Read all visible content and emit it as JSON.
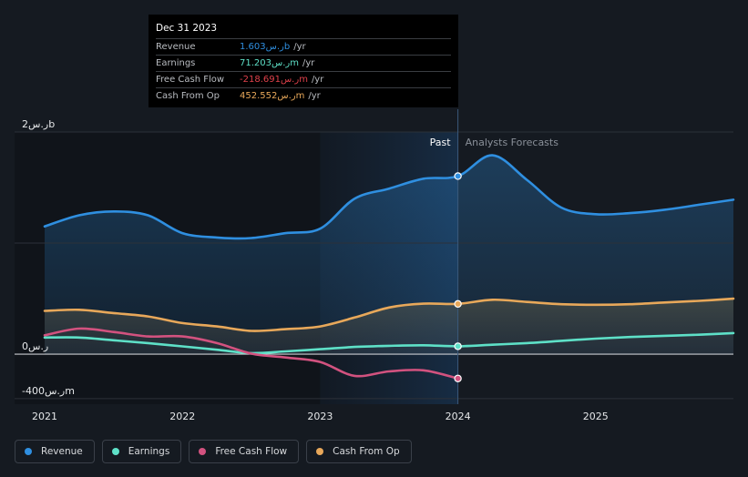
{
  "chart_data": {
    "type": "area",
    "title": "",
    "xlabel": "",
    "ylabel": "",
    "x_ticks": [
      {
        "label": "2021",
        "value": 2021.0
      },
      {
        "label": "2022",
        "value": 2022.0
      },
      {
        "label": "2023",
        "value": 2023.0
      },
      {
        "label": "2024",
        "value": 2024.0
      },
      {
        "label": "2025",
        "value": 2025.0
      }
    ],
    "xlim": [
      2020.98,
      2026.0
    ],
    "ylim": [
      -450,
      2000
    ],
    "y_ticks": [
      {
        "label": "2ر.سb",
        "value": 2000
      },
      {
        "label": "0ر.س",
        "value": 0
      },
      {
        "label": "-400ر.سm",
        "value": -400
      }
    ],
    "past_label": "Past",
    "forecast_label": "Analysts Forecasts",
    "past_end": 2024.0,
    "highlight_start": 2023.0,
    "series": [
      {
        "name": "Revenue",
        "color": "#2f8fe0",
        "fill": true,
        "points": [
          [
            2021.0,
            1150
          ],
          [
            2021.25,
            1250
          ],
          [
            2021.5,
            1285
          ],
          [
            2021.75,
            1250
          ],
          [
            2022.0,
            1090
          ],
          [
            2022.25,
            1050
          ],
          [
            2022.5,
            1045
          ],
          [
            2022.75,
            1090
          ],
          [
            2023.0,
            1130
          ],
          [
            2023.25,
            1400
          ],
          [
            2023.5,
            1490
          ],
          [
            2023.75,
            1580
          ],
          [
            2024.0,
            1603
          ],
          [
            2024.25,
            1790
          ],
          [
            2024.5,
            1570
          ],
          [
            2024.75,
            1320
          ],
          [
            2025.0,
            1260
          ],
          [
            2025.25,
            1270
          ],
          [
            2025.5,
            1300
          ],
          [
            2025.75,
            1345
          ],
          [
            2026.0,
            1390
          ]
        ]
      },
      {
        "name": "Earnings",
        "color": "#5ee0c7",
        "fill": false,
        "points": [
          [
            2021.0,
            150
          ],
          [
            2021.25,
            150
          ],
          [
            2021.5,
            125
          ],
          [
            2021.75,
            100
          ],
          [
            2022.0,
            70
          ],
          [
            2022.25,
            40
          ],
          [
            2022.5,
            10
          ],
          [
            2022.75,
            25
          ],
          [
            2023.0,
            45
          ],
          [
            2023.25,
            65
          ],
          [
            2023.5,
            75
          ],
          [
            2023.75,
            80
          ],
          [
            2024.0,
            71.2
          ],
          [
            2024.25,
            85
          ],
          [
            2024.5,
            100
          ],
          [
            2024.75,
            120
          ],
          [
            2025.0,
            140
          ],
          [
            2025.25,
            155
          ],
          [
            2025.5,
            165
          ],
          [
            2025.75,
            175
          ],
          [
            2026.0,
            190
          ]
        ]
      },
      {
        "name": "Free Cash Flow",
        "color": "#d2527f",
        "fill": false,
        "points": [
          [
            2021.0,
            170
          ],
          [
            2021.25,
            230
          ],
          [
            2021.5,
            200
          ],
          [
            2021.75,
            160
          ],
          [
            2022.0,
            160
          ],
          [
            2022.25,
            100
          ],
          [
            2022.5,
            5
          ],
          [
            2022.75,
            -30
          ],
          [
            2023.0,
            -70
          ],
          [
            2023.25,
            -195
          ],
          [
            2023.5,
            -155
          ],
          [
            2023.75,
            -145
          ],
          [
            2024.0,
            -218.7
          ]
        ]
      },
      {
        "name": "Cash From Op",
        "color": "#e8a85a",
        "fill": true,
        "points": [
          [
            2021.0,
            390
          ],
          [
            2021.25,
            400
          ],
          [
            2021.5,
            370
          ],
          [
            2021.75,
            340
          ],
          [
            2022.0,
            280
          ],
          [
            2022.25,
            250
          ],
          [
            2022.5,
            210
          ],
          [
            2022.75,
            225
          ],
          [
            2023.0,
            250
          ],
          [
            2023.25,
            330
          ],
          [
            2023.5,
            420
          ],
          [
            2023.75,
            455
          ],
          [
            2024.0,
            452.6
          ],
          [
            2024.25,
            490
          ],
          [
            2024.5,
            470
          ],
          [
            2024.75,
            450
          ],
          [
            2025.0,
            445
          ],
          [
            2025.25,
            450
          ],
          [
            2025.5,
            465
          ],
          [
            2025.75,
            480
          ],
          [
            2026.0,
            500
          ]
        ]
      }
    ]
  },
  "tooltip": {
    "date": "Dec 31 2023",
    "rows": [
      {
        "label": "Revenue",
        "value": "1.603ر.سb",
        "unit": "/yr",
        "color": "#2f8fe0"
      },
      {
        "label": "Earnings",
        "value": "71.203ر.سm",
        "unit": "/yr",
        "color": "#5ee0c7"
      },
      {
        "label": "Free Cash Flow",
        "value": "-218.691ر.سm",
        "unit": "/yr",
        "color": "#e0414b"
      },
      {
        "label": "Cash From Op",
        "value": "452.552ر.سm",
        "unit": "/yr",
        "color": "#e8a85a"
      }
    ]
  },
  "legend": [
    {
      "label": "Revenue",
      "color": "#2f8fe0"
    },
    {
      "label": "Earnings",
      "color": "#5ee0c7"
    },
    {
      "label": "Free Cash Flow",
      "color": "#d2527f"
    },
    {
      "label": "Cash From Op",
      "color": "#e8a85a"
    }
  ]
}
